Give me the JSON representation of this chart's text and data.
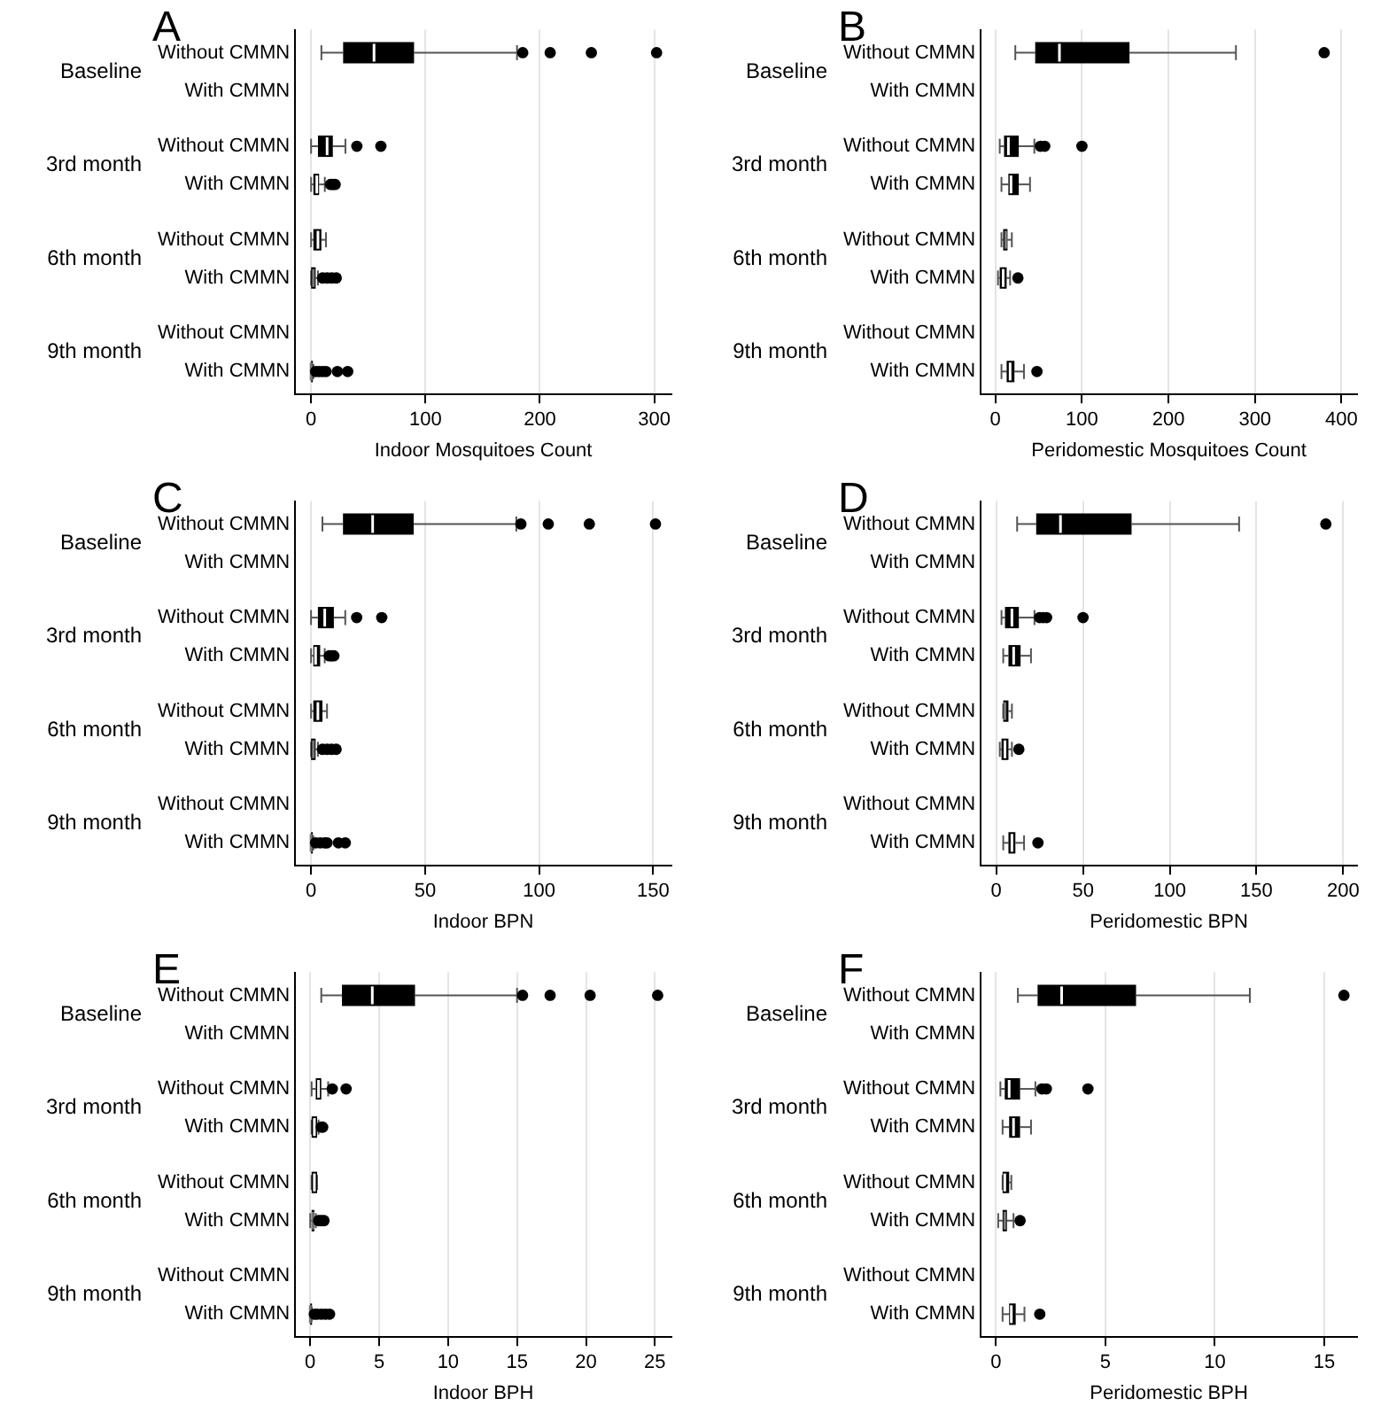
{
  "chart_data": [
    {
      "type": "box",
      "title": "A",
      "orientation": "horizontal",
      "color": "#000000",
      "xlabel": "Indoor Mosquitoes Count",
      "xlim": [
        -14,
        315
      ],
      "xticks": [
        0,
        100,
        200,
        300
      ],
      "grid": "x",
      "annotations": [
        "Baseline",
        "3rd month",
        "6th month",
        "9th month"
      ],
      "categories": [
        "Without CMMN",
        "With CMMN",
        "Without CMMN",
        "With CMMN",
        "Without CMMN",
        "With CMMN",
        "Without CMMN",
        "With CMMN"
      ],
      "boxes": [
        {
          "low": 9,
          "q1": 28,
          "median": 55,
          "q3": 90,
          "high": 180,
          "outliers": [
            185,
            209,
            245,
            302
          ]
        },
        null,
        {
          "low": 0,
          "q1": 6,
          "median": 14,
          "q3": 19,
          "high": 30,
          "outliers": [
            40,
            61
          ]
        },
        {
          "low": 0,
          "q1": 2,
          "median": 5,
          "q3": 7,
          "high": 12,
          "outliers": [
            17,
            19,
            21
          ]
        },
        {
          "low": 0,
          "q1": 2,
          "median": 6,
          "q3": 9,
          "high": 13
        },
        {
          "low": 0,
          "q1": 0,
          "median": 2,
          "q3": 4,
          "high": 6,
          "outliers": [
            10,
            14,
            18,
            22
          ]
        },
        null,
        {
          "low": 0,
          "q1": 0,
          "median": 0,
          "q3": 1,
          "high": 2,
          "outliers": [
            4,
            7,
            10,
            13,
            23,
            32
          ]
        }
      ]
    },
    {
      "type": "box",
      "title": "B",
      "orientation": "horizontal",
      "color": "#000000",
      "xlabel": "Peridomestic Mosquitoes Count",
      "xlim": [
        -17,
        418
      ],
      "xticks": [
        0,
        100,
        200,
        300,
        400
      ],
      "grid": "x",
      "annotations": [
        "Baseline",
        "3rd month",
        "6th month",
        "9th month"
      ],
      "categories": [
        "Without CMMN",
        "With CMMN",
        "Without CMMN",
        "With CMMN",
        "Without CMMN",
        "With CMMN",
        "Without CMMN",
        "With CMMN"
      ],
      "boxes": [
        {
          "low": 23,
          "q1": 46,
          "median": 74,
          "q3": 155,
          "high": 278,
          "outliers": [
            380
          ]
        },
        null,
        {
          "low": 5,
          "q1": 10,
          "median": 15,
          "q3": 27,
          "high": 45,
          "outliers": [
            52,
            57,
            100
          ]
        },
        {
          "low": 7,
          "q1": 15,
          "median": 18,
          "q3": 27,
          "high": 40
        },
        {
          "low": 7,
          "q1": 9,
          "median": 12,
          "q3": 14,
          "high": 19
        },
        {
          "low": 3,
          "q1": 5,
          "median": 9,
          "q3": 13,
          "high": 17,
          "outliers": [
            26
          ]
        },
        null,
        {
          "low": 7,
          "q1": 13,
          "median": 17,
          "q3": 22,
          "high": 33,
          "outliers": [
            48
          ]
        }
      ]
    },
    {
      "type": "box",
      "title": "C",
      "orientation": "horizontal",
      "color": "#000000",
      "xlabel": "Indoor BPN",
      "xlim": [
        -7,
        158
      ],
      "xticks": [
        0,
        50,
        100,
        150
      ],
      "grid": "x",
      "annotations": [
        "Baseline",
        "3rd month",
        "6th month",
        "9th month"
      ],
      "categories": [
        "Without CMMN",
        "With CMMN",
        "Without CMMN",
        "With CMMN",
        "Without CMMN",
        "With CMMN",
        "Without CMMN",
        "With CMMN"
      ],
      "boxes": [
        {
          "low": 5,
          "q1": 14,
          "median": 27,
          "q3": 45,
          "high": 90,
          "outliers": [
            92,
            104,
            122,
            151
          ]
        },
        null,
        {
          "low": 0,
          "q1": 3,
          "median": 6,
          "q3": 10,
          "high": 15,
          "outliers": [
            20,
            31
          ]
        },
        {
          "low": 0,
          "q1": 1,
          "median": 2,
          "q3": 4,
          "high": 6,
          "outliers": [
            8,
            9,
            10
          ]
        },
        {
          "low": 0,
          "q1": 1,
          "median": 3,
          "q3": 5,
          "high": 7
        },
        {
          "low": 0,
          "q1": 0,
          "median": 1,
          "q3": 2,
          "high": 3,
          "outliers": [
            5,
            7,
            9,
            11
          ]
        },
        null,
        {
          "low": 0,
          "q1": 0,
          "median": 0,
          "q3": 0.5,
          "high": 1,
          "outliers": [
            2,
            4,
            6,
            7,
            12,
            15
          ]
        }
      ]
    },
    {
      "type": "box",
      "title": "D",
      "orientation": "horizontal",
      "color": "#000000",
      "xlabel": "Peridomestic BPN",
      "xlim": [
        -9,
        208
      ],
      "xticks": [
        0,
        50,
        100,
        150,
        200
      ],
      "grid": "x",
      "annotations": [
        "Baseline",
        "3rd month",
        "6th month",
        "9th month"
      ],
      "categories": [
        "Without CMMN",
        "With CMMN",
        "Without CMMN",
        "With CMMN",
        "Without CMMN",
        "With CMMN",
        "Without CMMN",
        "With CMMN"
      ],
      "boxes": [
        {
          "low": 12,
          "q1": 23,
          "median": 37,
          "q3": 78,
          "high": 140,
          "outliers": [
            190
          ]
        },
        null,
        {
          "low": 3,
          "q1": 5,
          "median": 9,
          "q3": 13,
          "high": 22,
          "outliers": [
            25,
            27,
            29,
            50
          ]
        },
        {
          "low": 4,
          "q1": 7,
          "median": 10,
          "q3": 14,
          "high": 20
        },
        {
          "low": 4,
          "q1": 4,
          "median": 5,
          "q3": 7,
          "high": 9
        },
        {
          "low": 2,
          "q1": 3,
          "median": 5,
          "q3": 7,
          "high": 9,
          "outliers": [
            13
          ]
        },
        null,
        {
          "low": 4,
          "q1": 7,
          "median": 9,
          "q3": 11,
          "high": 16,
          "outliers": [
            24
          ]
        }
      ]
    },
    {
      "type": "box",
      "title": "E",
      "orientation": "horizontal",
      "color": "#000000",
      "xlabel": "Indoor BPH",
      "xlim": [
        -1.1,
        26.2
      ],
      "xticks": [
        0,
        5,
        10,
        15,
        20,
        25
      ],
      "grid": "x",
      "annotations": [
        "Baseline",
        "3rd month",
        "6th month",
        "9th month"
      ],
      "categories": [
        "Without CMMN",
        "With CMMN",
        "Without CMMN",
        "With CMMN",
        "Without CMMN",
        "With CMMN",
        "Without CMMN",
        "With CMMN"
      ],
      "boxes": [
        {
          "low": 0.8,
          "q1": 2.3,
          "median": 4.5,
          "q3": 7.6,
          "high": 15,
          "outliers": [
            15.4,
            17.4,
            20.3,
            25.2
          ]
        },
        null,
        {
          "low": 0.1,
          "q1": 0.4,
          "median": 0.6,
          "q3": 0.8,
          "high": 1.3,
          "outliers": [
            1.6,
            2.6
          ]
        },
        {
          "low": 0.1,
          "q1": 0.1,
          "median": 0.3,
          "q3": 0.5,
          "high": 0.6,
          "outliers": [
            0.8,
            0.9
          ]
        },
        {
          "low": 0.1,
          "q1": 0.1,
          "median": 0.3,
          "q3": 0.5,
          "high": 0.5
        },
        {
          "low": 0,
          "q1": 0.1,
          "median": 0.2,
          "q3": 0.3,
          "high": 0.4,
          "outliers": [
            0.6,
            0.8,
            1
          ]
        },
        null,
        {
          "low": 0,
          "q1": 0,
          "median": 0,
          "q3": 0.1,
          "high": 0.1,
          "outliers": [
            0.3,
            0.5,
            0.8,
            1.1,
            1.4
          ]
        }
      ]
    },
    {
      "type": "box",
      "title": "F",
      "orientation": "horizontal",
      "color": "#000000",
      "xlabel": "Peridomestic BPH",
      "xlim": [
        -0.7,
        16.5
      ],
      "xticks": [
        0,
        5,
        10,
        15
      ],
      "grid": "x",
      "annotations": [
        "Baseline",
        "3rd month",
        "6th month",
        "9th month"
      ],
      "categories": [
        "Without CMMN",
        "With CMMN",
        "Without CMMN",
        "With CMMN",
        "Without CMMN",
        "With CMMN",
        "Without CMMN",
        "With CMMN"
      ],
      "boxes": [
        {
          "low": 1,
          "q1": 1.9,
          "median": 3,
          "q3": 6.4,
          "high": 11.6,
          "outliers": [
            15.9
          ]
        },
        null,
        {
          "low": 0.2,
          "q1": 0.4,
          "median": 0.6,
          "q3": 1.1,
          "high": 1.8,
          "outliers": [
            2.1,
            2.3,
            4.2
          ]
        },
        {
          "low": 0.3,
          "q1": 0.6,
          "median": 0.8,
          "q3": 1.1,
          "high": 1.6
        },
        {
          "low": 0.3,
          "q1": 0.3,
          "median": 0.4,
          "q3": 0.6,
          "high": 0.7
        },
        {
          "low": 0.1,
          "q1": 0.3,
          "median": 0.4,
          "q3": 0.5,
          "high": 0.8,
          "outliers": [
            1.1
          ]
        },
        null,
        {
          "low": 0.3,
          "q1": 0.6,
          "median": 0.7,
          "q3": 0.9,
          "high": 1.3,
          "outliers": [
            2
          ]
        }
      ]
    }
  ]
}
